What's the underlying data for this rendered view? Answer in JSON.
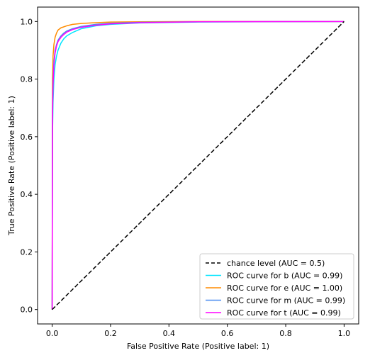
{
  "chart_data": {
    "type": "line",
    "title": "",
    "xlabel": "False Positive Rate (Positive label: 1)",
    "ylabel": "True Positive Rate (Positive label: 1)",
    "xlim": [
      -0.05,
      1.05
    ],
    "ylim": [
      -0.05,
      1.05
    ],
    "xticks": [
      0.0,
      0.2,
      0.4,
      0.6,
      0.8,
      1.0
    ],
    "yticks": [
      0.0,
      0.2,
      0.4,
      0.6,
      0.8,
      1.0
    ],
    "xtick_labels": [
      "0.0",
      "0.2",
      "0.4",
      "0.6",
      "0.8",
      "1.0"
    ],
    "ytick_labels": [
      "0.0",
      "0.2",
      "0.4",
      "0.6",
      "0.8",
      "1.0"
    ],
    "grid": false,
    "legend_position": "lower-right",
    "series": [
      {
        "name": "chance level (AUC = 0.5)",
        "color": "#000000",
        "dashed": true,
        "x": [
          0,
          1
        ],
        "y": [
          0,
          1
        ]
      },
      {
        "name": "ROC curve for b (AUC = 0.99)",
        "color": "#00e5ff",
        "x": [
          0,
          0.001,
          0.003,
          0.006,
          0.01,
          0.015,
          0.02,
          0.03,
          0.04,
          0.05,
          0.07,
          0.1,
          0.15,
          0.2,
          0.3,
          0.5,
          0.7,
          1.0
        ],
        "y": [
          0,
          0.6,
          0.72,
          0.8,
          0.85,
          0.88,
          0.9,
          0.925,
          0.94,
          0.95,
          0.962,
          0.975,
          0.985,
          0.99,
          0.995,
          0.998,
          0.999,
          1.0
        ]
      },
      {
        "name": "ROC curve for e (AUC = 1.00)",
        "color": "#ff8c00",
        "x": [
          0,
          0.001,
          0.003,
          0.006,
          0.01,
          0.015,
          0.02,
          0.03,
          0.05,
          0.07,
          0.1,
          0.15,
          0.2,
          0.3,
          0.5,
          1.0
        ],
        "y": [
          0,
          0.8,
          0.88,
          0.92,
          0.945,
          0.96,
          0.97,
          0.978,
          0.985,
          0.99,
          0.993,
          0.996,
          0.998,
          0.999,
          1.0,
          1.0
        ]
      },
      {
        "name": "ROC curve for m (AUC = 0.99)",
        "color": "#4c8df0",
        "x": [
          0,
          0.001,
          0.003,
          0.006,
          0.01,
          0.015,
          0.02,
          0.03,
          0.04,
          0.05,
          0.07,
          0.1,
          0.15,
          0.2,
          0.3,
          0.5,
          1.0
        ],
        "y": [
          0,
          0.7,
          0.8,
          0.86,
          0.9,
          0.92,
          0.935,
          0.95,
          0.96,
          0.967,
          0.975,
          0.983,
          0.99,
          0.994,
          0.997,
          0.999,
          1.0
        ]
      },
      {
        "name": "ROC curve for t (AUC = 0.99)",
        "color": "#ff00ff",
        "x": [
          0,
          0.001,
          0.003,
          0.006,
          0.01,
          0.015,
          0.02,
          0.03,
          0.04,
          0.05,
          0.07,
          0.1,
          0.15,
          0.2,
          0.3,
          0.5,
          1.0
        ],
        "y": [
          0,
          0.65,
          0.78,
          0.85,
          0.89,
          0.915,
          0.93,
          0.945,
          0.955,
          0.963,
          0.972,
          0.98,
          0.987,
          0.992,
          0.996,
          0.999,
          1.0
        ]
      }
    ]
  }
}
